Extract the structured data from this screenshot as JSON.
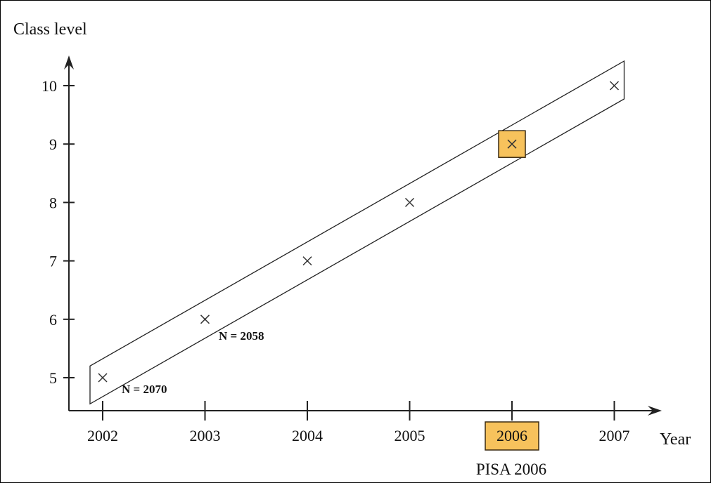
{
  "chart_data": {
    "type": "scatter",
    "ylabel": "Class level",
    "xlabel": "Year",
    "x": [
      2002,
      2003,
      2004,
      2005,
      2006,
      2007
    ],
    "y": [
      5,
      6,
      7,
      8,
      9,
      10
    ],
    "x_tick_labels": [
      "2002",
      "2003",
      "2004",
      "2005",
      "2006",
      "2007"
    ],
    "y_tick_labels": [
      "5",
      "6",
      "7",
      "8",
      "9",
      "10"
    ],
    "marker": "x",
    "highlight": {
      "x": 2006,
      "y": 9,
      "color": "#f7c25c",
      "caption": "PISA 2006"
    },
    "annotations": [
      {
        "text": "N = 2070",
        "x": 2002,
        "y": 5
      },
      {
        "text": "N = 2058",
        "x": 2003,
        "y": 6
      }
    ],
    "grid": false,
    "legend": "none"
  }
}
